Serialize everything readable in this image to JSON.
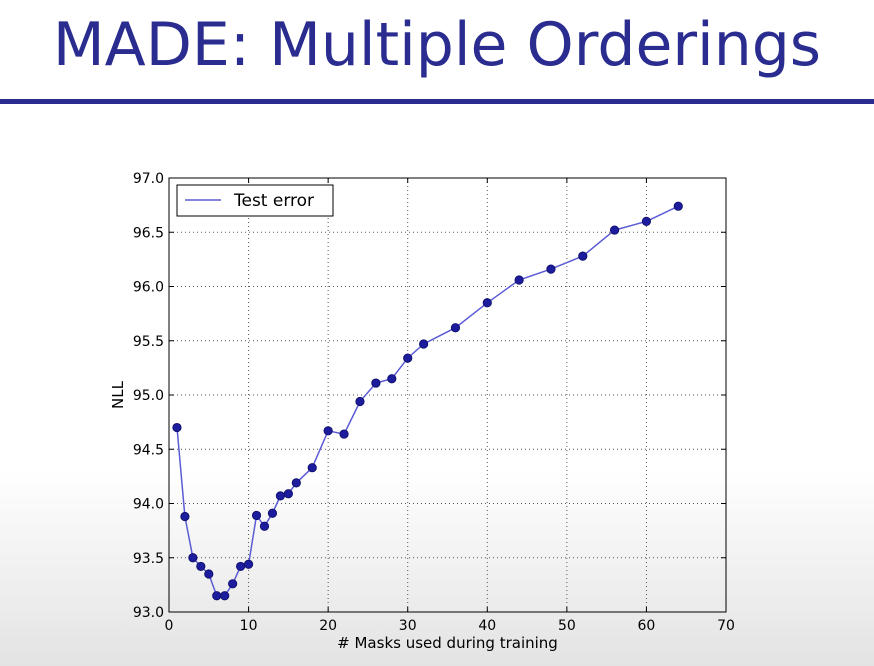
{
  "slide": {
    "title": "MADE: Multiple Orderings"
  },
  "colors": {
    "title": "#2a2d8f",
    "series_line": "#5b5bd6",
    "marker": "#1c1c9c"
  },
  "chart_data": {
    "type": "line",
    "xlabel": "# Masks used during training",
    "ylabel": "NLL",
    "xlim": [
      0,
      70
    ],
    "ylim": [
      93.0,
      97.0
    ],
    "xticks": [
      "0",
      "10",
      "20",
      "30",
      "40",
      "50",
      "60",
      "70"
    ],
    "yticks": [
      "93.0",
      "93.5",
      "94.0",
      "94.5",
      "95.0",
      "95.5",
      "96.0",
      "96.5",
      "97.0"
    ],
    "grid": true,
    "legend": "top-left",
    "series": [
      {
        "name": "Test error",
        "x": [
          1,
          2,
          3,
          4,
          5,
          6,
          7,
          8,
          9,
          10,
          11,
          12,
          13,
          14,
          15,
          16,
          18,
          20,
          22,
          24,
          26,
          28,
          30,
          32,
          36,
          40,
          44,
          48,
          52,
          56,
          60,
          64
        ],
        "y": [
          94.7,
          93.88,
          93.5,
          93.42,
          93.35,
          93.15,
          93.15,
          93.26,
          93.42,
          93.44,
          93.89,
          93.79,
          93.91,
          94.07,
          94.09,
          94.19,
          94.33,
          94.67,
          94.64,
          94.94,
          95.11,
          95.15,
          95.34,
          95.47,
          95.62,
          95.85,
          96.06,
          96.16,
          96.28,
          96.52,
          96.6,
          96.74
        ]
      }
    ]
  }
}
